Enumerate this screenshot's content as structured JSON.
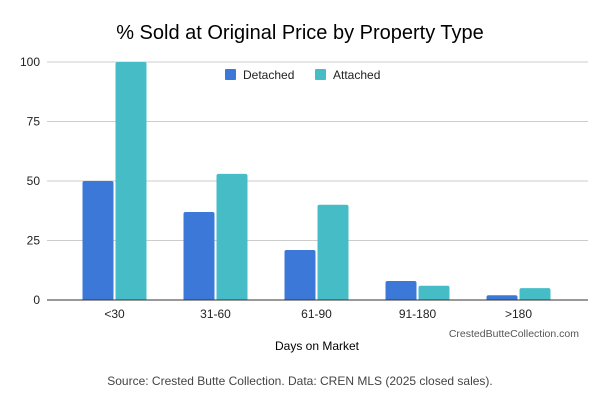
{
  "chart_data": {
    "type": "bar",
    "title": "% Sold at Original Price by Property Type",
    "xlabel": "Days on Market",
    "ylabel": "",
    "categories": [
      "<30",
      "31-60",
      "61-90",
      "91-180",
      ">180"
    ],
    "series": [
      {
        "name": "Detached",
        "color": "#3c78d8",
        "values": [
          50,
          37,
          21,
          8,
          2
        ]
      },
      {
        "name": "Attached",
        "color": "#46bdc6",
        "values": [
          100,
          53,
          40,
          6,
          5
        ]
      }
    ],
    "ylim": [
      0,
      100
    ],
    "yticks": [
      "0",
      "25",
      "50",
      "75",
      "100"
    ],
    "grid": true,
    "legend_position": "top-center",
    "watermark": "CrestedButteCollection.com",
    "source": "Source: Crested Butte Collection. Data: CREN MLS (2025 closed sales)."
  }
}
